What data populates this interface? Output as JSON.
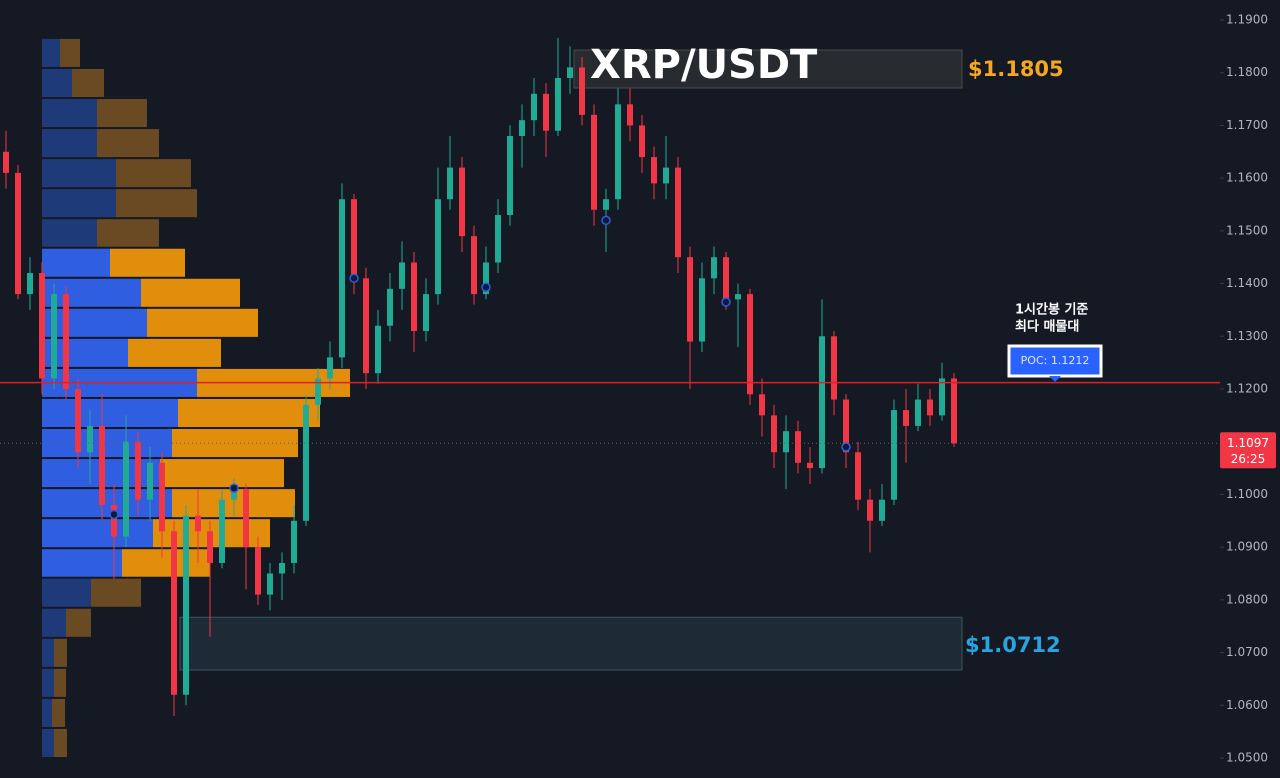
{
  "chart_data": {
    "type": "candlestick",
    "title": "XRP/USDT",
    "ylim": [
      1.05,
      1.19
    ],
    "yticks": [
      {
        "value": 1.19,
        "label": "1.1900"
      },
      {
        "value": 1.18,
        "label": "1.1800"
      },
      {
        "value": 1.17,
        "label": "1.1700"
      },
      {
        "value": 1.16,
        "label": "1.1600"
      },
      {
        "value": 1.15,
        "label": "1.1500"
      },
      {
        "value": 1.14,
        "label": "1.1400"
      },
      {
        "value": 1.13,
        "label": "1.1300"
      },
      {
        "value": 1.12,
        "label": "1.1200"
      },
      {
        "value": 1.11,
        "label": "1.1100"
      },
      {
        "value": 1.1,
        "label": "1.1000"
      },
      {
        "value": 1.09,
        "label": "1.0900"
      },
      {
        "value": 1.08,
        "label": "1.0800"
      },
      {
        "value": 1.07,
        "label": "1.0700"
      },
      {
        "value": 1.06,
        "label": "1.0600"
      },
      {
        "value": 1.05,
        "label": "1.0500"
      }
    ],
    "grid": false,
    "up_color": "#22ab94",
    "down_color": "#f23645",
    "candles": [
      [
        1.165,
        1.169,
        1.158,
        1.161
      ],
      [
        1.161,
        1.1625,
        1.137,
        1.138
      ],
      [
        1.138,
        1.145,
        1.135,
        1.142
      ],
      [
        1.142,
        1.144,
        1.119,
        1.122
      ],
      [
        1.122,
        1.14,
        1.12,
        1.138
      ],
      [
        1.138,
        1.1395,
        1.118,
        1.12
      ],
      [
        1.12,
        1.122,
        1.105,
        1.108
      ],
      [
        1.108,
        1.116,
        1.102,
        1.113
      ],
      [
        1.113,
        1.119,
        1.095,
        1.098
      ],
      [
        1.098,
        1.102,
        1.084,
        1.092
      ],
      [
        1.092,
        1.115,
        1.09,
        1.11
      ],
      [
        1.11,
        1.112,
        1.096,
        1.099
      ],
      [
        1.099,
        1.109,
        1.095,
        1.106
      ],
      [
        1.106,
        1.108,
        1.088,
        1.093
      ],
      [
        1.093,
        1.095,
        1.058,
        1.062
      ],
      [
        1.062,
        1.098,
        1.06,
        1.096
      ],
      [
        1.096,
        1.101,
        1.087,
        1.093
      ],
      [
        1.093,
        1.095,
        1.073,
        1.087
      ],
      [
        1.087,
        1.101,
        1.086,
        1.099
      ],
      [
        1.099,
        1.103,
        1.096,
        1.101
      ],
      [
        1.101,
        1.102,
        1.082,
        1.09
      ],
      [
        1.09,
        1.092,
        1.079,
        1.081
      ],
      [
        1.081,
        1.087,
        1.078,
        1.085
      ],
      [
        1.085,
        1.089,
        1.08,
        1.087
      ],
      [
        1.087,
        1.098,
        1.085,
        1.095
      ],
      [
        1.095,
        1.119,
        1.094,
        1.117
      ],
      [
        1.117,
        1.124,
        1.114,
        1.122
      ],
      [
        1.122,
        1.129,
        1.12,
        1.126
      ],
      [
        1.126,
        1.159,
        1.124,
        1.156
      ],
      [
        1.156,
        1.157,
        1.138,
        1.141
      ],
      [
        1.141,
        1.143,
        1.12,
        1.123
      ],
      [
        1.123,
        1.135,
        1.121,
        1.132
      ],
      [
        1.132,
        1.142,
        1.129,
        1.139
      ],
      [
        1.139,
        1.148,
        1.135,
        1.144
      ],
      [
        1.144,
        1.146,
        1.127,
        1.131
      ],
      [
        1.131,
        1.141,
        1.129,
        1.138
      ],
      [
        1.138,
        1.162,
        1.136,
        1.156
      ],
      [
        1.156,
        1.168,
        1.154,
        1.162
      ],
      [
        1.162,
        1.164,
        1.146,
        1.149
      ],
      [
        1.149,
        1.151,
        1.136,
        1.138
      ],
      [
        1.138,
        1.147,
        1.137,
        1.144
      ],
      [
        1.144,
        1.156,
        1.142,
        1.153
      ],
      [
        1.153,
        1.17,
        1.151,
        1.168
      ],
      [
        1.168,
        1.174,
        1.162,
        1.171
      ],
      [
        1.171,
        1.179,
        1.168,
        1.176
      ],
      [
        1.176,
        1.178,
        1.164,
        1.169
      ],
      [
        1.169,
        1.1866,
        1.168,
        1.179
      ],
      [
        1.179,
        1.185,
        1.176,
        1.181
      ],
      [
        1.181,
        1.183,
        1.17,
        1.172
      ],
      [
        1.172,
        1.174,
        1.151,
        1.154
      ],
      [
        1.154,
        1.158,
        1.146,
        1.156
      ],
      [
        1.156,
        1.177,
        1.154,
        1.174
      ],
      [
        1.174,
        1.177,
        1.167,
        1.17
      ],
      [
        1.17,
        1.172,
        1.161,
        1.164
      ],
      [
        1.164,
        1.166,
        1.156,
        1.159
      ],
      [
        1.159,
        1.168,
        1.156,
        1.162
      ],
      [
        1.162,
        1.164,
        1.142,
        1.145
      ],
      [
        1.145,
        1.147,
        1.12,
        1.129
      ],
      [
        1.129,
        1.144,
        1.127,
        1.141
      ],
      [
        1.141,
        1.147,
        1.138,
        1.145
      ],
      [
        1.145,
        1.146,
        1.135,
        1.137
      ],
      [
        1.137,
        1.14,
        1.128,
        1.138
      ],
      [
        1.138,
        1.139,
        1.117,
        1.119
      ],
      [
        1.119,
        1.122,
        1.111,
        1.115
      ],
      [
        1.115,
        1.117,
        1.105,
        1.108
      ],
      [
        1.108,
        1.115,
        1.101,
        1.112
      ],
      [
        1.112,
        1.114,
        1.104,
        1.106
      ],
      [
        1.106,
        1.109,
        1.102,
        1.105
      ],
      [
        1.105,
        1.137,
        1.104,
        1.13
      ],
      [
        1.13,
        1.131,
        1.115,
        1.118
      ],
      [
        1.118,
        1.119,
        1.105,
        1.108
      ],
      [
        1.108,
        1.11,
        1.097,
        1.099
      ],
      [
        1.099,
        1.101,
        1.089,
        1.095
      ],
      [
        1.095,
        1.102,
        1.094,
        1.099
      ],
      [
        1.099,
        1.118,
        1.098,
        1.116
      ],
      [
        1.116,
        1.12,
        1.106,
        1.113
      ],
      [
        1.113,
        1.121,
        1.112,
        1.118
      ],
      [
        1.118,
        1.12,
        1.113,
        1.115
      ],
      [
        1.115,
        1.125,
        1.114,
        1.122
      ],
      [
        1.122,
        1.123,
        1.109,
        1.1097
      ]
    ],
    "signals": [
      {
        "candle": 9,
        "price": 1.0962
      },
      {
        "candle": 19,
        "price": 1.1012
      },
      {
        "candle": 29,
        "price": 1.141
      },
      {
        "candle": 40,
        "price": 1.1393
      },
      {
        "candle": 50,
        "price": 1.152
      },
      {
        "candle": 60,
        "price": 1.1365
      },
      {
        "candle": 70,
        "price": 1.109
      }
    ],
    "volume_profile": {
      "bins": [
        1.1866,
        1.1809,
        1.1752,
        1.1695,
        1.1638,
        1.1581,
        1.1524,
        1.1468,
        1.1411,
        1.1354,
        1.1297,
        1.124,
        1.1183,
        1.1126,
        1.1069,
        1.1012,
        1.0955,
        1.0898,
        1.0842,
        1.0785,
        1.0728,
        1.0671,
        1.0614,
        1.0557,
        1.05
      ],
      "buy": [
        18,
        30,
        55,
        55,
        74,
        74,
        55,
        68,
        99,
        105,
        86,
        155,
        136,
        130,
        118,
        130,
        111,
        80,
        49,
        24,
        12,
        12,
        10,
        12
      ],
      "sell": [
        20,
        32,
        50,
        62,
        75,
        81,
        62,
        75,
        99,
        111,
        93,
        153,
        142,
        126,
        124,
        123,
        117,
        88,
        50,
        25,
        13,
        12,
        13,
        13
      ],
      "buy_color": "#2f5ee0",
      "sell_color": "#e08e0b",
      "dim_buy_color": "#1f3a78",
      "dim_sell_color": "#6a4a22",
      "value_area": [
        1.0842,
        1.1468
      ]
    },
    "poc": 1.1212,
    "poc_label": "POC: 1.1212",
    "poc_note": [
      "1시간봉 기준",
      "최다 매물대"
    ],
    "last_price": 1.1097,
    "countdown": "26:25",
    "zones": [
      {
        "label": "$1.1805",
        "value": 1.1805,
        "top": 1.1843,
        "bottom": 1.1771,
        "color": "#f5a623"
      },
      {
        "label": "$1.0712",
        "value": 1.0712,
        "top": 1.0767,
        "bottom": 1.0667,
        "color": "#2aa4e0"
      }
    ]
  }
}
